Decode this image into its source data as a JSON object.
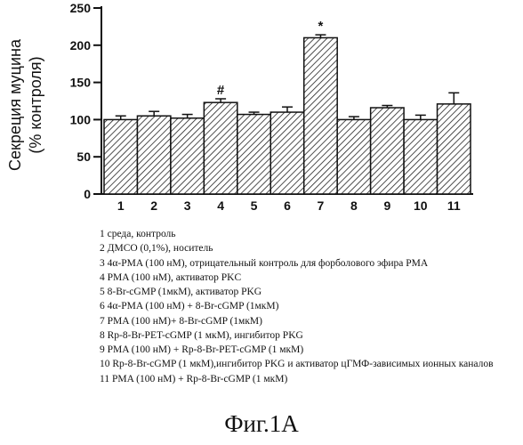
{
  "chart_data": {
    "type": "bar",
    "ylabel": "Секреция муцина\n(% контроля)",
    "xlabel": "",
    "title": "",
    "ylim": [
      0,
      250
    ],
    "yticks": [
      0,
      50,
      100,
      150,
      200,
      250
    ],
    "categories": [
      "1",
      "2",
      "3",
      "4",
      "5",
      "6",
      "7",
      "8",
      "9",
      "10",
      "11"
    ],
    "values": [
      100,
      105,
      102,
      123,
      107,
      110,
      210,
      100,
      116,
      100,
      121
    ],
    "errors": [
      5,
      6,
      5,
      5,
      3,
      7,
      4,
      4,
      3,
      6,
      15
    ],
    "annotations": [
      {
        "category": "4",
        "text": "#"
      },
      {
        "category": "7",
        "text": "*"
      }
    ],
    "bar_fill": "diagonal-hatch",
    "bar_color": "#222222"
  },
  "legend_items": [
    "1  среда, контроль",
    "2  ДМСО (0,1%), носитель",
    "3  4α-PMA (100 нМ), отрицательный контроль для форболового эфира PMA",
    "4  PMA (100 нМ), активатор PKC",
    "5  8-Br-cGMP (1мкМ), активатор PKG",
    "6  4α-PMA (100 нМ) + 8-Br-cGMP (1мкМ)",
    "7  PMA (100 нМ)+ 8-Br-cGMP (1мкМ)",
    "8  Rp-8-Br-PET-cGMP (1 мкМ), ингибитор PKG",
    "9  PMA (100 нМ) + Rp-8-Br-PET-cGMP (1 мкМ)",
    "10  Rp-8-Br-cGMP (1 мкМ),ингибитор PKG и активатор цГМФ-зависимых ионных каналов",
    "11  PMA (100 нМ) + Rp-8-Br-cGMP (1 мкМ)"
  ],
  "caption": "Фиг.1A"
}
